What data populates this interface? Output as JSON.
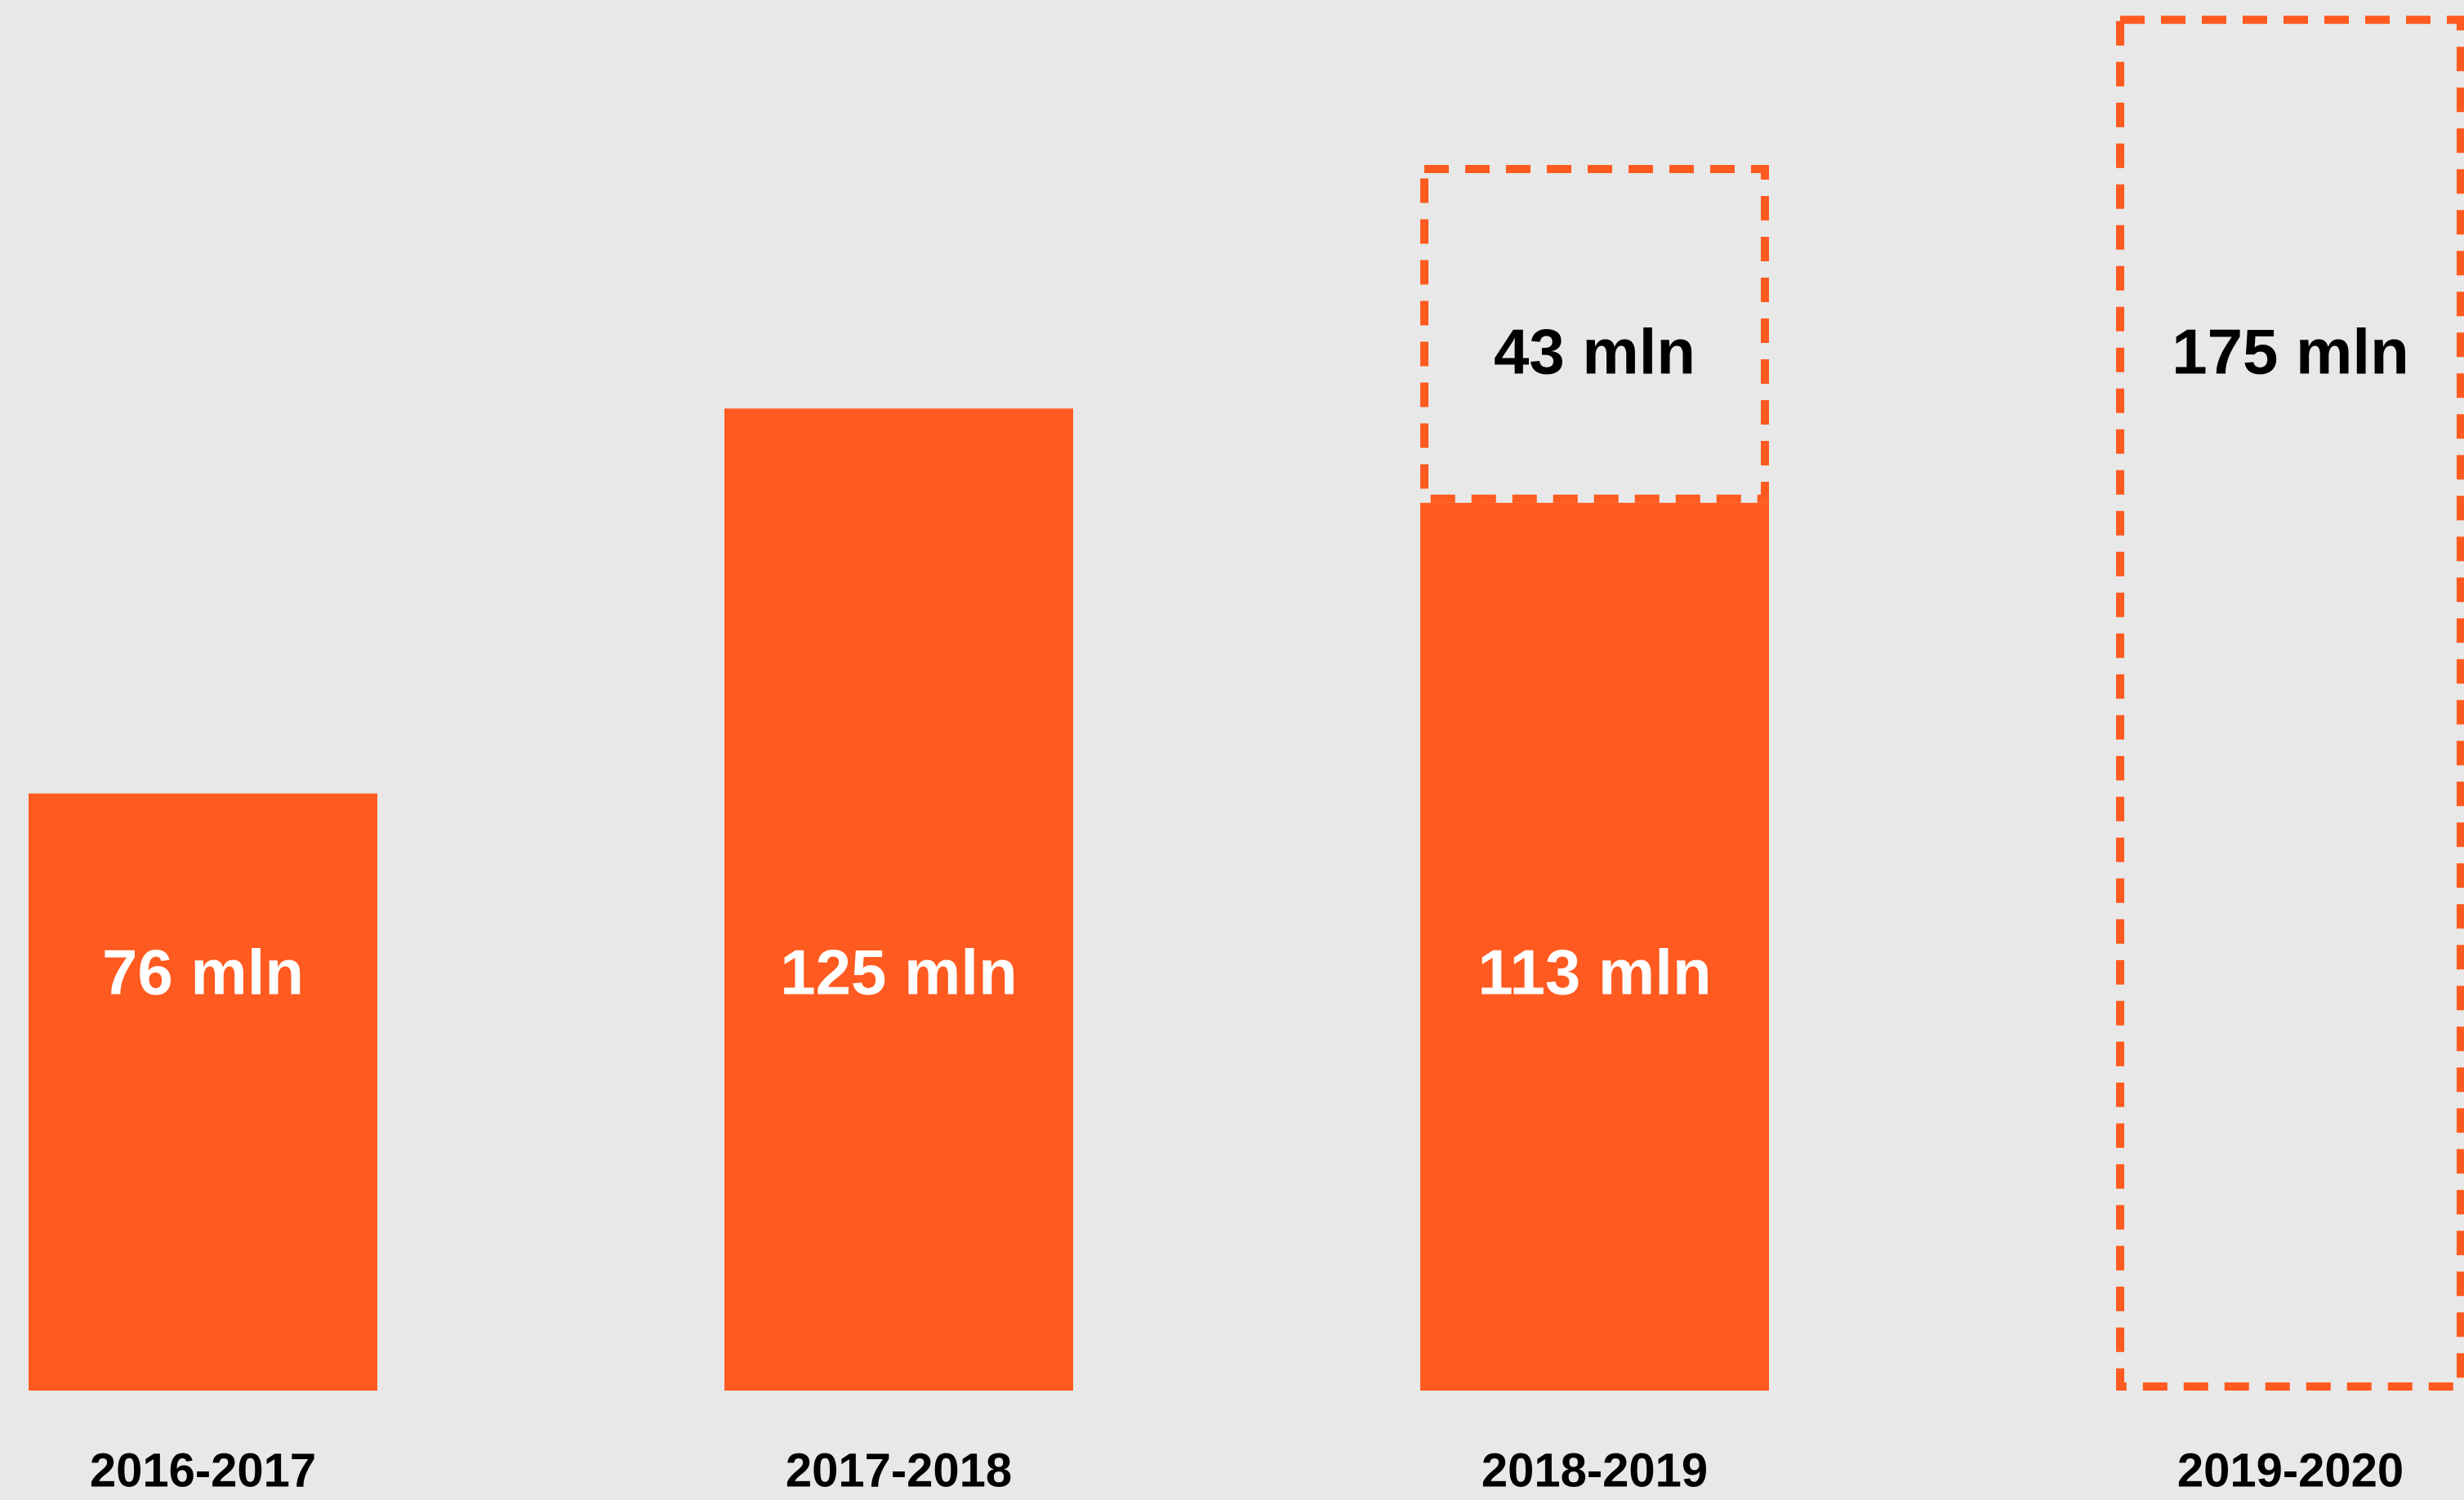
{
  "chart_data": {
    "type": "bar",
    "stacked": true,
    "categories": [
      "2016-2017",
      "2017-2018",
      "2018-2019",
      "2019-2020"
    ],
    "ylim": [
      0,
      177
    ],
    "series": [
      {
        "color": "#FF5A1F",
        "style": "solid",
        "values": [
          76,
          125,
          113,
          null
        ],
        "value_labels": [
          "76 mln",
          "125 mln",
          "113 mln",
          null
        ]
      },
      {
        "color": "#FF5A1F",
        "style": "dashed",
        "values": [
          null,
          null,
          43,
          175
        ],
        "value_labels": [
          null,
          null,
          "43 mln",
          "175 mln"
        ]
      }
    ]
  }
}
